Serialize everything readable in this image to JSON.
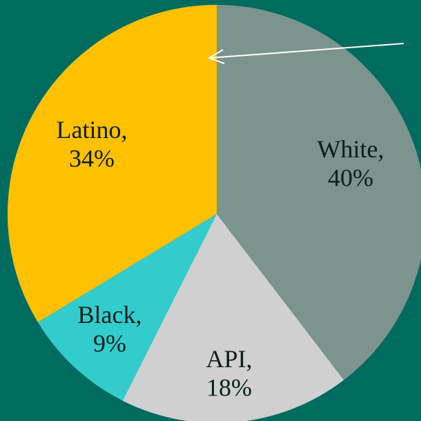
{
  "background_color": "#006b5f",
  "chart_data": {
    "type": "pie",
    "title": "",
    "slices": [
      {
        "name": "White",
        "value": 40,
        "label_line1": "White,",
        "label_line2": "40%",
        "color": "#7b948d"
      },
      {
        "name": "API",
        "value": 18,
        "label_line1": "API,",
        "label_line2": "18%",
        "color": "#d0d0d0"
      },
      {
        "name": "Black",
        "value": 9,
        "label_line1": "Black,",
        "label_line2": "9%",
        "color": "#33cccc"
      },
      {
        "name": "Latino",
        "value": 34,
        "label_line1": "Latino,",
        "label_line2": "34%",
        "color": "#ffc000"
      }
    ],
    "start_angle": "12 o'clock",
    "direction": "clockwise",
    "legend": "none",
    "annotation_arrow": "from right edge pointing left to the Latino slice"
  }
}
